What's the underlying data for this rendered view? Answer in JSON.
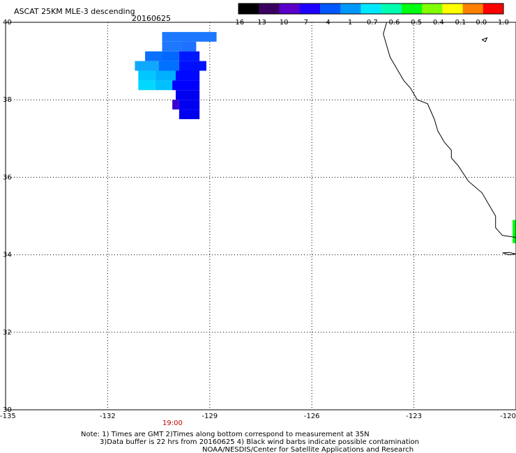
{
  "title": "ASCAT 25KM MLE-3 descending",
  "date": "20160625",
  "colorbar": {
    "labels": [
      "-16",
      "-13",
      "-10",
      "-7",
      "-4",
      "-1",
      "-0.7",
      "-0.6",
      "-0.5",
      "-0.4",
      "-0.1",
      "0.0",
      "1.0"
    ],
    "colors": [
      "#000000",
      "#3a0060",
      "#5a00c8",
      "#1e00ff",
      "#0058ff",
      "#0098ff",
      "#00e8ff",
      "#00ffb0",
      "#00ff10",
      "#80ff00",
      "#ffff00",
      "#ff8000",
      "#ff0000"
    ]
  },
  "axes": {
    "lat_labels": [
      "40",
      "38",
      "36",
      "34",
      "32",
      "30"
    ],
    "lon_labels": [
      "-135",
      "-132",
      "-129",
      "-126",
      "-123",
      "-120"
    ],
    "lat_range": [
      30,
      40
    ],
    "lon_range": [
      -135,
      -120
    ],
    "grid": "dotted"
  },
  "time_label": "19:00",
  "time_color": "#c00000",
  "notes": {
    "line1": "Note: 1) Times are GMT 2)Times along bottom correspond to measurement at 35N",
    "line2": "3)Data buffer is 22 hrs from 20160625 4) Black wind barbs indicate possible contamination",
    "line3": "NOAA/NESDIS/Center for Satellite Applications and Research"
  },
  "swath_cells": [
    {
      "lon": -130.4,
      "lat": 39.75,
      "dlon": 1.6,
      "dlat": 0.25,
      "color": "#1e78ff"
    },
    {
      "lon": -130.4,
      "lat": 39.5,
      "dlon": 1.0,
      "dlat": 0.25,
      "color": "#1e78ff"
    },
    {
      "lon": -129.8,
      "lat": 39.5,
      "dlon": 0.4,
      "dlat": 0.25,
      "color": "#1e70ff"
    },
    {
      "lon": -130.9,
      "lat": 39.25,
      "dlon": 0.5,
      "dlat": 0.25,
      "color": "#0a70ff"
    },
    {
      "lon": -130.4,
      "lat": 39.25,
      "dlon": 0.5,
      "dlat": 0.25,
      "color": "#0068ff"
    },
    {
      "lon": -129.9,
      "lat": 39.25,
      "dlon": 0.6,
      "dlat": 0.25,
      "color": "#0018ff"
    },
    {
      "lon": -131.2,
      "lat": 39.0,
      "dlon": 0.7,
      "dlat": 0.25,
      "color": "#10a8ff"
    },
    {
      "lon": -130.5,
      "lat": 39.0,
      "dlon": 0.6,
      "dlat": 0.25,
      "color": "#0070ff"
    },
    {
      "lon": -129.9,
      "lat": 39.0,
      "dlon": 0.8,
      "dlat": 0.25,
      "color": "#0010ff"
    },
    {
      "lon": -131.1,
      "lat": 38.75,
      "dlon": 0.5,
      "dlat": 0.25,
      "color": "#00c8ff"
    },
    {
      "lon": -130.6,
      "lat": 38.75,
      "dlon": 0.6,
      "dlat": 0.25,
      "color": "#00b0ff"
    },
    {
      "lon": -130.0,
      "lat": 38.75,
      "dlon": 0.7,
      "dlat": 0.25,
      "color": "#0008ff"
    },
    {
      "lon": -131.1,
      "lat": 38.5,
      "dlon": 0.5,
      "dlat": 0.25,
      "color": "#00d8ff"
    },
    {
      "lon": -130.6,
      "lat": 38.5,
      "dlon": 0.5,
      "dlat": 0.25,
      "color": "#00c0ff"
    },
    {
      "lon": -130.1,
      "lat": 38.5,
      "dlon": 0.8,
      "dlat": 0.25,
      "color": "#0000ff"
    },
    {
      "lon": -130.0,
      "lat": 38.25,
      "dlon": 0.7,
      "dlat": 0.25,
      "color": "#0000f0"
    },
    {
      "lon": -130.1,
      "lat": 38.0,
      "dlon": 0.2,
      "dlat": 0.25,
      "color": "#3a00d0"
    },
    {
      "lon": -129.9,
      "lat": 38.0,
      "dlon": 0.6,
      "dlat": 0.25,
      "color": "#0000f0"
    },
    {
      "lon": -129.9,
      "lat": 37.75,
      "dlon": 0.6,
      "dlat": 0.25,
      "color": "#0000f0"
    },
    {
      "lon": -120.1,
      "lat": 34.9,
      "dlon": 0.3,
      "dlat": 0.3,
      "color": "#00ff10"
    },
    {
      "lon": -120.1,
      "lat": 34.6,
      "dlon": 0.3,
      "dlat": 0.3,
      "color": "#00ff10"
    }
  ],
  "coastline": [
    [
      -123.8,
      40.0
    ],
    [
      -123.9,
      39.7
    ],
    [
      -123.8,
      39.4
    ],
    [
      -123.7,
      39.1
    ],
    [
      -123.5,
      38.8
    ],
    [
      -123.3,
      38.5
    ],
    [
      -123.1,
      38.3
    ],
    [
      -122.9,
      38.0
    ],
    [
      -122.6,
      37.9
    ],
    [
      -122.5,
      37.7
    ],
    [
      -122.4,
      37.5
    ],
    [
      -122.3,
      37.2
    ],
    [
      -122.1,
      36.9
    ],
    [
      -121.9,
      36.7
    ],
    [
      -121.9,
      36.5
    ],
    [
      -121.7,
      36.3
    ],
    [
      -121.4,
      35.9
    ],
    [
      -121.0,
      35.6
    ],
    [
      -120.8,
      35.3
    ],
    [
      -120.6,
      35.0
    ],
    [
      -120.6,
      34.7
    ],
    [
      -120.4,
      34.5
    ],
    [
      -120.0,
      34.45
    ]
  ],
  "islands": [
    [
      [
        -120.4,
        34.05
      ],
      [
        -120.2,
        34.0
      ],
      [
        -120.0,
        34.02
      ],
      [
        -120.2,
        34.06
      ],
      [
        -120.4,
        34.05
      ]
    ],
    [
      [
        -121.0,
        39.55
      ],
      [
        -120.9,
        39.5
      ],
      [
        -120.85,
        39.6
      ],
      [
        -121.0,
        39.55
      ]
    ]
  ]
}
